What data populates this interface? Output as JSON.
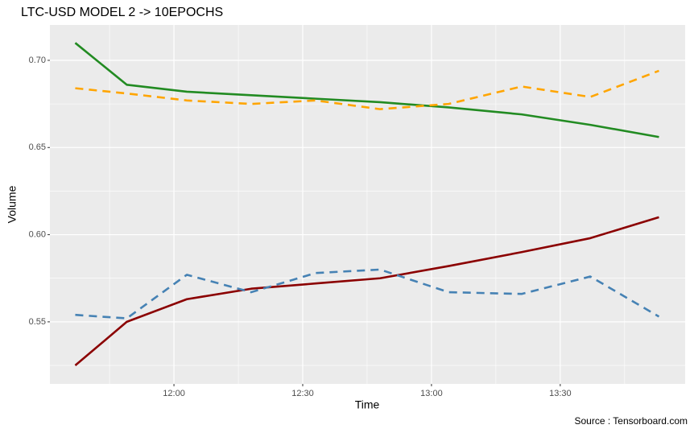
{
  "chart_data": {
    "type": "line",
    "title": "LTC-USD MODEL 2 -> 10EPOCHS",
    "x_label": "Time",
    "y_label": "Volume",
    "caption": "Source : Tensorboard.com",
    "x": [
      697,
      709,
      723,
      738,
      753,
      768,
      784,
      801,
      817,
      833
    ],
    "series": [
      {
        "color": "#228B22",
        "dashed": false,
        "values": [
          0.71,
          0.686,
          0.682,
          0.68,
          0.678,
          0.676,
          0.673,
          0.669,
          0.663,
          0.656
        ]
      },
      {
        "color": "#FFA500",
        "dashed": true,
        "values": [
          0.684,
          0.681,
          0.677,
          0.675,
          0.677,
          0.672,
          0.675,
          0.685,
          0.679,
          0.694
        ]
      },
      {
        "color": "#8B0000",
        "dashed": false,
        "values": [
          0.525,
          0.55,
          0.563,
          0.569,
          0.572,
          0.575,
          0.582,
          0.59,
          0.598,
          0.61
        ]
      },
      {
        "color": "#4682B4",
        "dashed": true,
        "values": [
          0.554,
          0.552,
          0.577,
          0.567,
          0.578,
          0.58,
          0.567,
          0.566,
          0.576,
          0.553
        ]
      }
    ],
    "xlim": [
      691.1,
      839.1
    ],
    "xticks": [
      {
        "value": 720,
        "label": "12:00"
      },
      {
        "value": 750,
        "label": "12:30"
      },
      {
        "value": 780,
        "label": "13:00"
      },
      {
        "value": 810,
        "label": "13:30"
      }
    ],
    "ylim": [
      0.5144,
      0.7203
    ],
    "yticks": [
      0.55,
      {
        "value": 0.6,
        "label": "0.60"
      },
      0.65,
      {
        "value": 0.7,
        "label": "0.70"
      }
    ],
    "grid": true
  }
}
